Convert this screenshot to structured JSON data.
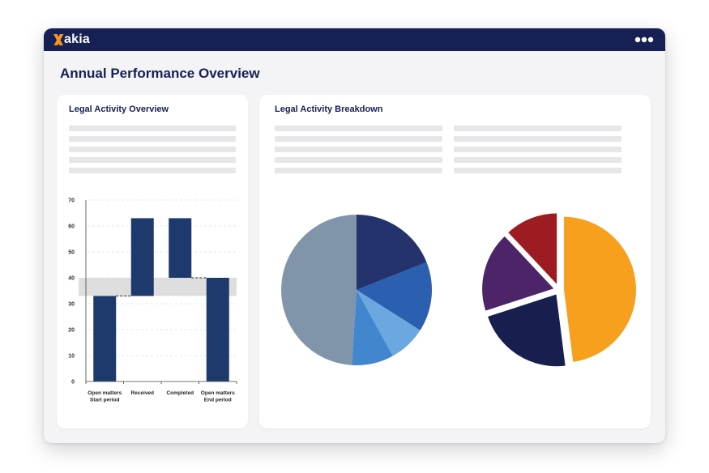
{
  "app": {
    "brand": "Xakia",
    "brand_x": "X",
    "brand_rest": "akia",
    "brand_color": "#f7941d",
    "topbar_color": "#162052",
    "menu_icon": "more-horizontal-icon"
  },
  "page": {
    "title": "Annual Performance Overview"
  },
  "left_card": {
    "title": "Legal Activity Overview"
  },
  "right_card": {
    "title": "Legal Activity Breakdown"
  },
  "chart_data": [
    {
      "type": "bar",
      "chart_subtype": "waterfall",
      "title": "Legal Activity Overview",
      "categories": [
        [
          "Open matters",
          "Start period"
        ],
        [
          "Received"
        ],
        [
          "Completed"
        ],
        [
          "Open matters",
          "End period"
        ]
      ],
      "bars": [
        {
          "category": "Open matters Start period",
          "base": 0,
          "top": 33
        },
        {
          "category": "Received",
          "base": 33,
          "top": 63
        },
        {
          "category": "Completed",
          "base": 40,
          "top": 63
        },
        {
          "category": "Open matters End period",
          "base": 0,
          "top": 40
        }
      ],
      "yticks": [
        0,
        10,
        20,
        30,
        40,
        50,
        60,
        70
      ],
      "ylim": [
        0,
        70
      ],
      "highlight_band": [
        33,
        40
      ],
      "dashed_connectors": [
        33,
        40
      ],
      "grid": true,
      "bar_color": "#1e3a6d",
      "band_color": "#dedede"
    },
    {
      "type": "pie",
      "slices": [
        {
          "value": 19,
          "color": "#24336b"
        },
        {
          "value": 15,
          "color": "#2b5faf"
        },
        {
          "value": 8,
          "color": "#6ba8df"
        },
        {
          "value": 9,
          "color": "#4286ce"
        },
        {
          "value": 49,
          "color": "#8195aa"
        }
      ]
    },
    {
      "type": "pie",
      "exploded": true,
      "slices": [
        {
          "value": 48,
          "color": "#f6a01e"
        },
        {
          "value": 22,
          "color": "#181e4d"
        },
        {
          "value": 18,
          "color": "#4d2468"
        },
        {
          "value": 12,
          "color": "#9c1c22"
        }
      ]
    }
  ]
}
